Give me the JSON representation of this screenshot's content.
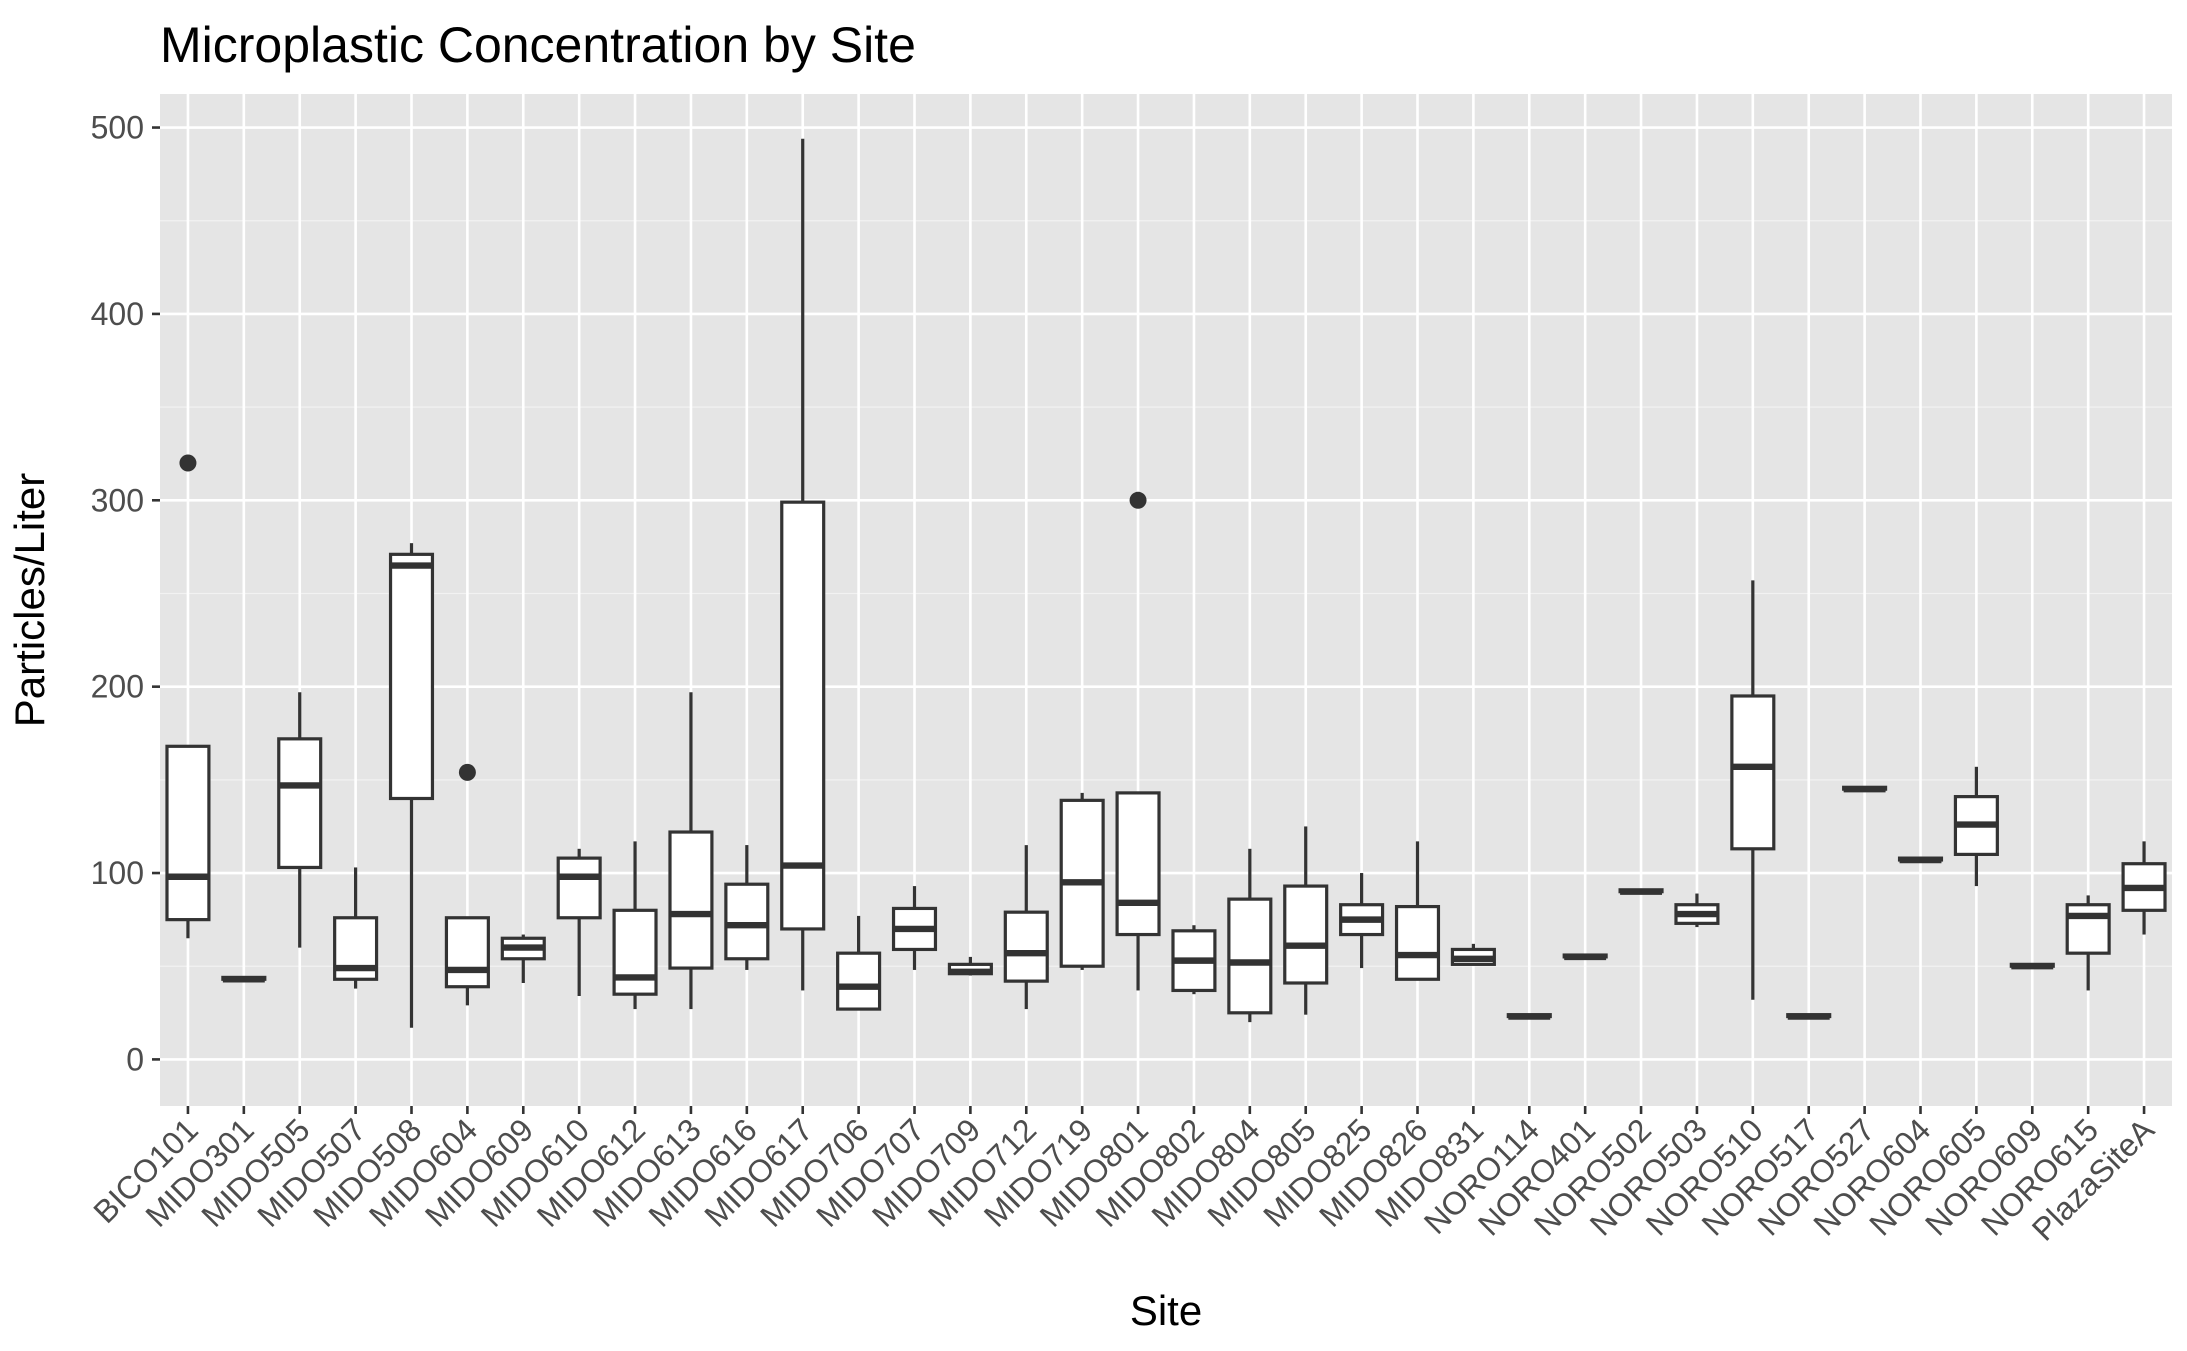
{
  "chart_data": {
    "type": "boxplot",
    "title": "Microplastic Concentration by Site",
    "xlabel": "Site",
    "ylabel": "Particles/Liter",
    "ylim": [
      -25,
      518
    ],
    "y_ticks": [
      0,
      100,
      200,
      300,
      400,
      500
    ],
    "grid": true,
    "legend": "none",
    "colors": {
      "panel": "#e5e5e5",
      "box_fill": "#ffffff",
      "box_line": "#333333",
      "text": "#000000",
      "tick_text": "#4d4d4d"
    },
    "categories": [
      "BICO101",
      "MIDO301",
      "MIDO505",
      "MIDO507",
      "MIDO508",
      "MIDO604",
      "MIDO609",
      "MIDO610",
      "MIDO612",
      "MIDO613",
      "MIDO616",
      "MIDO617",
      "MIDO706",
      "MIDO707",
      "MIDO709",
      "MIDO712",
      "MIDO719",
      "MIDO801",
      "MIDO802",
      "MIDO804",
      "MIDO805",
      "MIDO825",
      "MIDO826",
      "MIDO831",
      "NORO114",
      "NORO401",
      "NORO502",
      "NORO503",
      "NORO510",
      "NORO517",
      "NORO527",
      "NORO604",
      "NORO605",
      "NORO609",
      "NORO615",
      "PlazaSiteA"
    ],
    "boxes": [
      {
        "site": "BICO101",
        "min": 65,
        "q1": 75,
        "median": 98,
        "q3": 168,
        "max": 168,
        "outliers": [
          320
        ]
      },
      {
        "site": "MIDO301",
        "min": 43,
        "q1": 43,
        "median": 43,
        "q3": 44,
        "max": 44,
        "outliers": []
      },
      {
        "site": "MIDO505",
        "min": 60,
        "q1": 103,
        "median": 147,
        "q3": 172,
        "max": 197,
        "outliers": []
      },
      {
        "site": "MIDO507",
        "min": 38,
        "q1": 43,
        "median": 49,
        "q3": 76,
        "max": 103,
        "outliers": []
      },
      {
        "site": "MIDO508",
        "min": 17,
        "q1": 140,
        "median": 265,
        "q3": 271,
        "max": 277,
        "outliers": []
      },
      {
        "site": "MIDO604",
        "min": 29,
        "q1": 39,
        "median": 48,
        "q3": 76,
        "max": 76,
        "outliers": [
          154
        ]
      },
      {
        "site": "MIDO609",
        "min": 41,
        "q1": 54,
        "median": 60,
        "q3": 65,
        "max": 67,
        "outliers": []
      },
      {
        "site": "MIDO610",
        "min": 34,
        "q1": 76,
        "median": 98,
        "q3": 108,
        "max": 113,
        "outliers": []
      },
      {
        "site": "MIDO612",
        "min": 27,
        "q1": 35,
        "median": 44,
        "q3": 80,
        "max": 117,
        "outliers": []
      },
      {
        "site": "MIDO613",
        "min": 27,
        "q1": 49,
        "median": 78,
        "q3": 122,
        "max": 197,
        "outliers": []
      },
      {
        "site": "MIDO616",
        "min": 48,
        "q1": 54,
        "median": 72,
        "q3": 94,
        "max": 115,
        "outliers": []
      },
      {
        "site": "MIDO617",
        "min": 37,
        "q1": 70,
        "median": 104,
        "q3": 299,
        "max": 494,
        "outliers": []
      },
      {
        "site": "MIDO706",
        "min": 27,
        "q1": 27,
        "median": 39,
        "q3": 57,
        "max": 77,
        "outliers": []
      },
      {
        "site": "MIDO707",
        "min": 48,
        "q1": 59,
        "median": 70,
        "q3": 81,
        "max": 93,
        "outliers": []
      },
      {
        "site": "MIDO709",
        "min": 45,
        "q1": 46,
        "median": 47,
        "q3": 51,
        "max": 55,
        "outliers": []
      },
      {
        "site": "MIDO712",
        "min": 27,
        "q1": 42,
        "median": 57,
        "q3": 79,
        "max": 115,
        "outliers": []
      },
      {
        "site": "MIDO719",
        "min": 48,
        "q1": 50,
        "median": 95,
        "q3": 139,
        "max": 143,
        "outliers": []
      },
      {
        "site": "MIDO801",
        "min": 37,
        "q1": 67,
        "median": 84,
        "q3": 143,
        "max": 143,
        "outliers": [
          300
        ]
      },
      {
        "site": "MIDO802",
        "min": 35,
        "q1": 37,
        "median": 53,
        "q3": 69,
        "max": 72,
        "outliers": []
      },
      {
        "site": "MIDO804",
        "min": 20,
        "q1": 25,
        "median": 52,
        "q3": 86,
        "max": 113,
        "outliers": []
      },
      {
        "site": "MIDO805",
        "min": 24,
        "q1": 41,
        "median": 61,
        "q3": 93,
        "max": 125,
        "outliers": []
      },
      {
        "site": "MIDO825",
        "min": 49,
        "q1": 67,
        "median": 75,
        "q3": 83,
        "max": 100,
        "outliers": []
      },
      {
        "site": "MIDO826",
        "min": 43,
        "q1": 43,
        "median": 56,
        "q3": 82,
        "max": 117,
        "outliers": []
      },
      {
        "site": "MIDO831",
        "min": 51,
        "q1": 51,
        "median": 54,
        "q3": 59,
        "max": 62,
        "outliers": []
      },
      {
        "site": "NORO114",
        "min": 23,
        "q1": 23,
        "median": 23,
        "q3": 24,
        "max": 24,
        "outliers": []
      },
      {
        "site": "NORO401",
        "min": 55,
        "q1": 55,
        "median": 55,
        "q3": 56,
        "max": 56,
        "outliers": []
      },
      {
        "site": "NORO502",
        "min": 90,
        "q1": 90,
        "median": 90,
        "q3": 91,
        "max": 91,
        "outliers": []
      },
      {
        "site": "NORO503",
        "min": 71,
        "q1": 73,
        "median": 78,
        "q3": 83,
        "max": 89,
        "outliers": []
      },
      {
        "site": "NORO510",
        "min": 32,
        "q1": 113,
        "median": 157,
        "q3": 195,
        "max": 257,
        "outliers": []
      },
      {
        "site": "NORO517",
        "min": 23,
        "q1": 23,
        "median": 23,
        "q3": 24,
        "max": 24,
        "outliers": []
      },
      {
        "site": "NORO527",
        "min": 145,
        "q1": 145,
        "median": 145,
        "q3": 146,
        "max": 146,
        "outliers": []
      },
      {
        "site": "NORO604",
        "min": 107,
        "q1": 107,
        "median": 107,
        "q3": 108,
        "max": 108,
        "outliers": []
      },
      {
        "site": "NORO605",
        "min": 93,
        "q1": 110,
        "median": 126,
        "q3": 141,
        "max": 157,
        "outliers": []
      },
      {
        "site": "NORO609",
        "min": 50,
        "q1": 50,
        "median": 50,
        "q3": 51,
        "max": 51,
        "outliers": []
      },
      {
        "site": "NORO615",
        "min": 37,
        "q1": 57,
        "median": 77,
        "q3": 83,
        "max": 88,
        "outliers": []
      },
      {
        "site": "PlazaSiteA",
        "min": 67,
        "q1": 80,
        "median": 92,
        "q3": 105,
        "max": 117,
        "outliers": []
      }
    ]
  }
}
